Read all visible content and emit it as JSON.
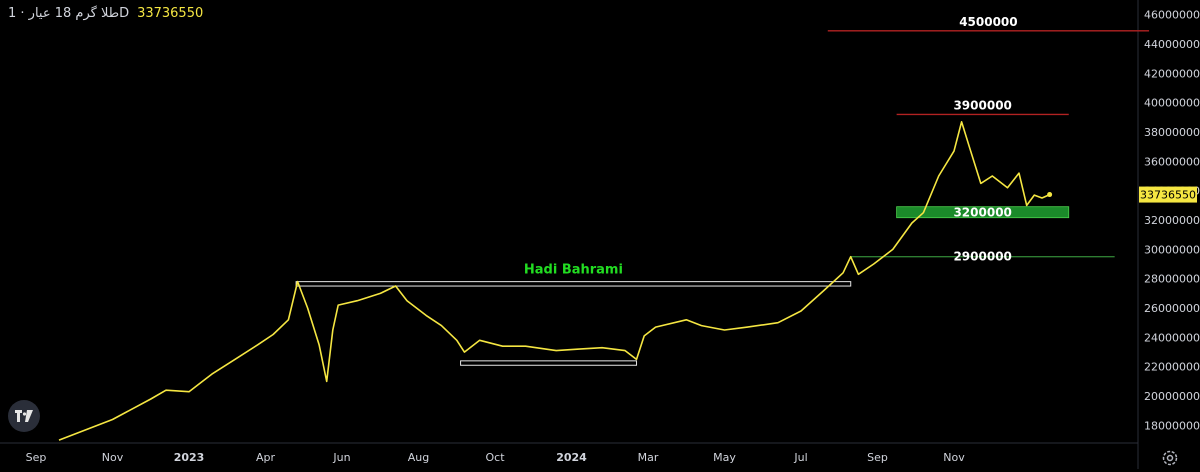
{
  "header": {
    "symbol": "طلا گرم 18 عیار · 1D",
    "last_value": "33736550"
  },
  "colors": {
    "background": "#000000",
    "price_line": "#f5e642",
    "resistance_line": "#b22222",
    "support_line": "#2e7d32",
    "support_zone": "#1b8a2a",
    "box_stroke": "#e6e6e6",
    "green_text": "#22dd22",
    "axis_text": "#d1d4dc",
    "price_tag_bg": "#f5e642"
  },
  "icons": {
    "logo": "tradingview-logo-icon",
    "settings": "gear-icon"
  },
  "chart_data": {
    "type": "line",
    "x_ticks": [
      "Sep",
      "Nov",
      "2023",
      "Apr",
      "Jun",
      "Aug",
      "Oct",
      "2024",
      "Mar",
      "May",
      "Jul",
      "Sep",
      "Nov"
    ],
    "y_ticks": [
      "18000000",
      "20000000",
      "22000000",
      "24000000",
      "26000000",
      "28000000",
      "30000000",
      "32000000",
      "34000000",
      "36000000",
      "38000000",
      "40000000",
      "42000000",
      "44000000",
      "46000000"
    ],
    "ylim": [
      16800000,
      47000000
    ],
    "last_price": 33736550,
    "series": [
      {
        "values": [
          [
            0.3,
            17000000
          ],
          [
            1.0,
            18400000
          ],
          [
            1.5,
            19800000
          ],
          [
            1.7,
            20400000
          ],
          [
            2.0,
            20300000
          ],
          [
            2.3,
            21500000
          ],
          [
            2.6,
            22500000
          ],
          [
            2.9,
            23500000
          ],
          [
            3.1,
            24200000
          ],
          [
            3.3,
            25200000
          ],
          [
            3.42,
            27800000
          ],
          [
            3.55,
            26000000
          ],
          [
            3.7,
            23500000
          ],
          [
            3.8,
            21000000
          ],
          [
            3.88,
            24500000
          ],
          [
            3.95,
            26200000
          ],
          [
            4.2,
            26500000
          ],
          [
            4.5,
            27000000
          ],
          [
            4.7,
            27500000
          ],
          [
            4.85,
            26500000
          ],
          [
            5.1,
            25500000
          ],
          [
            5.3,
            24800000
          ],
          [
            5.5,
            23800000
          ],
          [
            5.6,
            23000000
          ],
          [
            5.8,
            23800000
          ],
          [
            6.1,
            23400000
          ],
          [
            6.4,
            23400000
          ],
          [
            6.8,
            23100000
          ],
          [
            7.1,
            23200000
          ],
          [
            7.4,
            23300000
          ],
          [
            7.7,
            23100000
          ],
          [
            7.85,
            22500000
          ],
          [
            7.95,
            24100000
          ],
          [
            8.1,
            24700000
          ],
          [
            8.5,
            25200000
          ],
          [
            8.7,
            24800000
          ],
          [
            9.0,
            24500000
          ],
          [
            9.3,
            24700000
          ],
          [
            9.7,
            25000000
          ],
          [
            10.0,
            25800000
          ],
          [
            10.3,
            27200000
          ],
          [
            10.55,
            28400000
          ],
          [
            10.65,
            29500000
          ],
          [
            10.75,
            28300000
          ],
          [
            10.95,
            29000000
          ],
          [
            11.2,
            30000000
          ],
          [
            11.45,
            31800000
          ],
          [
            11.6,
            32500000
          ],
          [
            11.8,
            35000000
          ],
          [
            12.0,
            36700000
          ],
          [
            12.1,
            38700000
          ],
          [
            12.2,
            37000000
          ],
          [
            12.35,
            34500000
          ],
          [
            12.5,
            35000000
          ],
          [
            12.7,
            34200000
          ],
          [
            12.85,
            35200000
          ],
          [
            12.95,
            33000000
          ],
          [
            13.05,
            33700000
          ],
          [
            13.15,
            33500000
          ],
          [
            13.25,
            33736550
          ]
        ]
      }
    ],
    "horizontal_levels": [
      {
        "label": "4500000",
        "value": 44900000,
        "x_start": 10.35,
        "x_end": 14.55,
        "kind": "resistance"
      },
      {
        "label": "3900000",
        "value": 39200000,
        "x_start": 11.25,
        "x_end": 13.5,
        "kind": "resistance"
      },
      {
        "label": "3200000",
        "value": 32500000,
        "x_start": 11.25,
        "x_end": 13.5,
        "kind": "zone"
      },
      {
        "label": "2900000",
        "value": 29500000,
        "x_start": 10.65,
        "x_end": 14.1,
        "kind": "support"
      }
    ],
    "boxes": [
      {
        "label": "Hadi Bahrami",
        "x_start": 3.4,
        "x_end": 10.65,
        "y_low": 27500000,
        "y_high": 27800000
      },
      {
        "label": "",
        "x_start": 5.55,
        "x_end": 7.85,
        "y_low": 22100000,
        "y_high": 22400000
      }
    ]
  }
}
